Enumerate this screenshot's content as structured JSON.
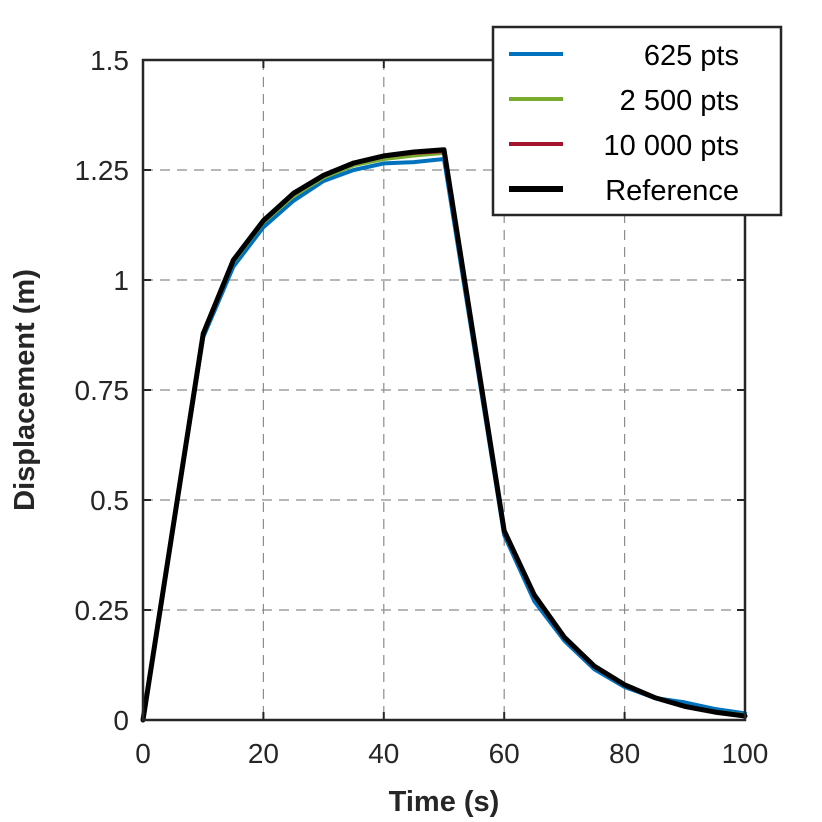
{
  "chart_data": {
    "type": "line",
    "title": "",
    "xlabel": "Time (s)",
    "ylabel": "Displacement (m)",
    "xlim": [
      0,
      100
    ],
    "ylim": [
      0,
      1.5
    ],
    "xticks": [
      0,
      20,
      40,
      60,
      80,
      100
    ],
    "xtick_labels": [
      "0",
      "20",
      "40",
      "60",
      "80",
      "100"
    ],
    "yticks": [
      0,
      0.25,
      0.5,
      0.75,
      1,
      1.25,
      1.5
    ],
    "ytick_labels": [
      "0",
      "0.25",
      "0.5",
      "0.75",
      "1",
      "1.25",
      "1.5"
    ],
    "grid": true,
    "legend_position": "top-right",
    "x": [
      0,
      10,
      15,
      20,
      25,
      30,
      35,
      40,
      45,
      50,
      60,
      65,
      70,
      75,
      80,
      85,
      90,
      95,
      100
    ],
    "series": [
      {
        "name": "625 pts",
        "legend_label": "625 pts",
        "color": "#0072BD",
        "values": [
          0,
          0.87,
          1.03,
          1.12,
          1.18,
          1.225,
          1.25,
          1.265,
          1.268,
          1.275,
          0.42,
          0.27,
          0.18,
          0.115,
          0.075,
          0.05,
          0.04,
          0.025,
          0.015
        ]
      },
      {
        "name": "2 500 pts",
        "legend_label": "2 500 pts",
        "color": "#77AC30",
        "values": [
          0,
          0.873,
          1.04,
          1.13,
          1.19,
          1.232,
          1.26,
          1.274,
          1.282,
          1.288,
          0.425,
          0.28,
          0.185,
          0.12,
          0.078,
          0.05,
          0.032,
          0.02,
          0.012
        ]
      },
      {
        "name": "10 000 pts",
        "legend_label": "10 000 pts",
        "color": "#A2142F",
        "values": [
          0,
          0.875,
          1.043,
          1.133,
          1.194,
          1.236,
          1.264,
          1.28,
          1.288,
          1.292,
          0.428,
          0.282,
          0.186,
          0.121,
          0.079,
          0.05,
          0.031,
          0.018,
          0.01
        ]
      },
      {
        "name": "Reference",
        "legend_label": "Reference",
        "color": "#000000",
        "values": [
          0,
          0.878,
          1.045,
          1.135,
          1.197,
          1.238,
          1.266,
          1.282,
          1.291,
          1.296,
          0.43,
          0.284,
          0.188,
          0.122,
          0.08,
          0.051,
          0.031,
          0.018,
          0.009
        ]
      }
    ]
  }
}
